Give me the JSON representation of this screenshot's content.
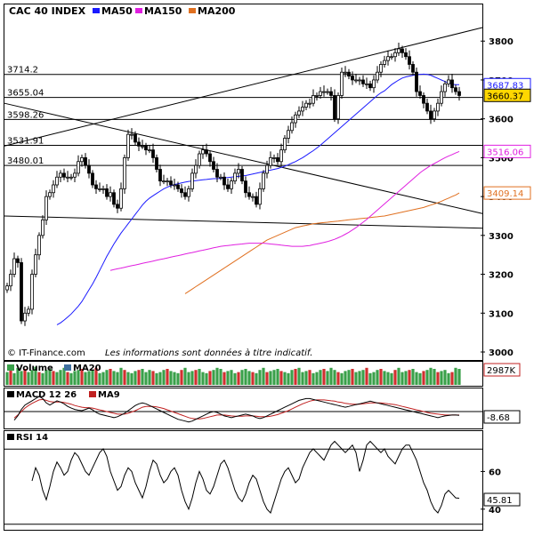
{
  "title": "CAC 40 INDEX",
  "legend_main": [
    {
      "label": "MA50",
      "color": "#1a1aff"
    },
    {
      "label": "MA150",
      "color": "#e020e0"
    },
    {
      "label": "MA200",
      "color": "#e07020"
    }
  ],
  "copyright": "© IT-Finance.com",
  "disclaimer": "Les informations sont données à titre indicatif.",
  "chart_data": [
    {
      "type": "candlestick",
      "title": "CAC 40 INDEX",
      "ylim": [
        3000,
        3860
      ],
      "y_ticks": [
        3000,
        3100,
        3200,
        3300,
        3400,
        3500,
        3600,
        3700,
        3800
      ],
      "n_periods": 128,
      "ohlc_close": [
        3170,
        3200,
        3240,
        3230,
        3080,
        3100,
        3110,
        3200,
        3250,
        3300,
        3340,
        3400,
        3410,
        3430,
        3450,
        3460,
        3450,
        3450,
        3450,
        3460,
        3490,
        3500,
        3480,
        3460,
        3430,
        3420,
        3420,
        3420,
        3400,
        3410,
        3380,
        3370,
        3420,
        3500,
        3560,
        3560,
        3540,
        3530,
        3530,
        3520,
        3520,
        3500,
        3470,
        3440,
        3440,
        3440,
        3430,
        3430,
        3420,
        3410,
        3400,
        3420,
        3460,
        3480,
        3510,
        3520,
        3510,
        3490,
        3470,
        3450,
        3450,
        3430,
        3420,
        3440,
        3460,
        3470,
        3440,
        3410,
        3400,
        3400,
        3380,
        3420,
        3460,
        3480,
        3500,
        3500,
        3490,
        3520,
        3550,
        3570,
        3590,
        3610,
        3620,
        3630,
        3640,
        3640,
        3660,
        3660,
        3670,
        3670,
        3670,
        3660,
        3600,
        3660,
        3720,
        3720,
        3710,
        3700,
        3700,
        3700,
        3690,
        3690,
        3680,
        3700,
        3720,
        3740,
        3750,
        3760,
        3760,
        3770,
        3780,
        3770,
        3760,
        3740,
        3720,
        3670,
        3660,
        3640,
        3620,
        3600,
        3620,
        3640,
        3670,
        3690,
        3700,
        3680,
        3670,
        3660
      ],
      "price_labels": [
        {
          "label": "3714.2",
          "value": 3714.2
        },
        {
          "label": "3655.04",
          "value": 3655.04
        },
        {
          "label": "3598.26",
          "value": 3598.26
        },
        {
          "label": "3531.91",
          "value": 3531.91
        },
        {
          "label": "3480.01",
          "value": 3480.01
        }
      ],
      "last_values": [
        {
          "label": "3687.83",
          "value": 3687.83,
          "color": "#1a1aff"
        },
        {
          "label": "3660.37",
          "value": 3660.37,
          "color": "#000000"
        },
        {
          "label": "3516.06",
          "value": 3516.06,
          "color": "#e020e0"
        },
        {
          "label": "3409.14",
          "value": 3409.14,
          "color": "#e07020"
        }
      ],
      "ma50": [
        3070,
        3075,
        3082,
        3090,
        3098,
        3108,
        3118,
        3130,
        3145,
        3160,
        3175,
        3192,
        3210,
        3228,
        3246,
        3262,
        3278,
        3292,
        3306,
        3318,
        3330,
        3342,
        3354,
        3366,
        3378,
        3388,
        3396,
        3402,
        3408,
        3414,
        3420,
        3424,
        3428,
        3431,
        3433,
        3435,
        3437,
        3439,
        3440,
        3441,
        3442,
        3443,
        3444,
        3445,
        3446,
        3446,
        3447,
        3448,
        3449,
        3450,
        3451,
        3452,
        3453,
        3454,
        3456,
        3458,
        3460,
        3462,
        3464,
        3466,
        3468,
        3470,
        3472,
        3475,
        3478,
        3482,
        3486,
        3490,
        3495,
        3500,
        3506,
        3512,
        3518,
        3525,
        3532,
        3540,
        3548,
        3556,
        3564,
        3572,
        3580,
        3588,
        3596,
        3604,
        3612,
        3620,
        3628,
        3636,
        3644,
        3652,
        3660,
        3667,
        3672,
        3680,
        3688,
        3694,
        3700,
        3705,
        3708,
        3710,
        3712,
        3713,
        3714,
        3715,
        3714,
        3712,
        3708,
        3704,
        3700,
        3696,
        3692,
        3689,
        3688,
        3687.83
      ],
      "ma150": [
        3210,
        3212,
        3214,
        3216,
        3218,
        3220,
        3222,
        3224,
        3226,
        3228,
        3230,
        3232,
        3234,
        3236,
        3238,
        3240,
        3242,
        3244,
        3246,
        3248,
        3250,
        3252,
        3254,
        3256,
        3258,
        3260,
        3262,
        3264,
        3266,
        3268,
        3270,
        3272,
        3273,
        3274,
        3275,
        3276,
        3277,
        3278,
        3279,
        3280,
        3280,
        3280,
        3280,
        3280,
        3279,
        3278,
        3277,
        3276,
        3275,
        3274,
        3273,
        3272,
        3272,
        3272,
        3272,
        3273,
        3274,
        3276,
        3278,
        3280,
        3282,
        3284,
        3287,
        3290,
        3294,
        3298,
        3303,
        3308,
        3314,
        3320,
        3327,
        3334,
        3341,
        3349,
        3357,
        3365,
        3373,
        3381,
        3389,
        3397,
        3405,
        3413,
        3421,
        3429,
        3437,
        3445,
        3453,
        3461,
        3468,
        3474,
        3480,
        3485,
        3490,
        3495,
        3500,
        3504,
        3508,
        3512,
        3516.06
      ],
      "ma200": [
        3150,
        3156,
        3162,
        3168,
        3174,
        3180,
        3186,
        3192,
        3198,
        3204,
        3210,
        3216,
        3222,
        3228,
        3234,
        3240,
        3246,
        3252,
        3258,
        3264,
        3270,
        3276,
        3282,
        3288,
        3292,
        3296,
        3300,
        3304,
        3308,
        3312,
        3316,
        3320,
        3322,
        3324,
        3326,
        3328,
        3330,
        3331,
        3332,
        3333,
        3334,
        3335,
        3336,
        3337,
        3338,
        3339,
        3340,
        3341,
        3342,
        3343,
        3344,
        3345,
        3346,
        3347,
        3348,
        3349,
        3350,
        3352,
        3354,
        3356,
        3358,
        3360,
        3362,
        3364,
        3366,
        3368,
        3370,
        3372,
        3375,
        3378,
        3381,
        3384,
        3388,
        3392,
        3396,
        3400,
        3404,
        3409.14
      ],
      "trendlines": [
        {
          "from": [
            0,
            3530
          ],
          "to": [
            127,
            3820
          ],
          "color": "#000000"
        },
        {
          "from": [
            0,
            3640
          ],
          "to": [
            127,
            3370
          ],
          "color": "#000000"
        },
        {
          "from": [
            0,
            3350
          ],
          "to": [
            127,
            3320
          ],
          "color": "#000000"
        }
      ]
    },
    {
      "type": "bar",
      "title": "Volume",
      "legend": [
        {
          "label": "Volume",
          "color": "#5050c0"
        },
        {
          "label": "MA20",
          "color": "#4070a0"
        }
      ],
      "last_label": "2987K",
      "values": [
        60,
        70,
        55,
        80,
        65,
        75,
        60,
        70,
        85,
        60,
        55,
        70,
        75,
        65,
        60,
        70,
        80,
        60,
        55,
        65,
        70,
        75,
        60,
        65,
        70,
        80,
        55,
        60,
        70,
        75,
        65,
        60,
        80,
        70,
        60,
        55,
        65,
        70,
        75,
        60,
        70,
        65,
        55,
        60,
        70,
        75,
        65,
        60,
        55,
        70,
        80,
        60,
        65,
        70,
        75,
        60,
        55,
        65,
        70,
        80,
        75,
        60,
        65,
        70,
        55,
        60,
        70,
        75,
        65,
        60,
        55,
        70,
        80,
        60,
        65,
        70,
        75,
        65,
        60,
        55,
        70,
        75,
        80,
        60,
        65,
        70,
        55,
        60,
        70,
        75,
        65,
        80,
        70,
        60,
        55,
        65,
        70,
        75,
        60,
        65,
        70,
        80,
        55,
        60,
        70,
        75,
        65,
        60,
        55,
        70,
        80,
        60,
        65,
        70,
        75,
        60,
        55,
        65,
        70,
        80,
        75,
        60,
        65,
        70,
        55,
        60,
        80,
        75
      ]
    },
    {
      "type": "line",
      "title": "MACD 12 26",
      "legend": [
        {
          "label": "MACD 12 26",
          "color": "#000000"
        },
        {
          "label": "MA9",
          "color": "#c02020"
        }
      ],
      "last_label": "-8.68",
      "macd": [
        -20,
        -10,
        5,
        15,
        20,
        25,
        30,
        35,
        30,
        20,
        15,
        20,
        25,
        22,
        18,
        12,
        8,
        5,
        3,
        2,
        5,
        8,
        4,
        -2,
        -6,
        -8,
        -10,
        -12,
        -14,
        -12,
        -8,
        -4,
        2,
        8,
        14,
        18,
        20,
        18,
        14,
        10,
        6,
        2,
        -2,
        -6,
        -10,
        -14,
        -18,
        -20,
        -22,
        -24,
        -22,
        -18,
        -14,
        -10,
        -6,
        -2,
        0,
        -2,
        -6,
        -10,
        -12,
        -14,
        -12,
        -10,
        -8,
        -6,
        -8,
        -10,
        -14,
        -16,
        -14,
        -10,
        -6,
        -2,
        2,
        6,
        10,
        14,
        18,
        22,
        26,
        28,
        30,
        30,
        28,
        26,
        24,
        22,
        20,
        18,
        16,
        14,
        12,
        10,
        12,
        14,
        16,
        18,
        20,
        22,
        24,
        22,
        20,
        18,
        16,
        14,
        12,
        10,
        8,
        6,
        4,
        2,
        0,
        -2,
        -4,
        -6,
        -8,
        -10,
        -12,
        -14,
        -12,
        -10,
        -9,
        -8,
        -8,
        -8.68
      ],
      "signal": [
        -15,
        -8,
        0,
        8,
        14,
        19,
        23,
        27,
        28,
        26,
        23,
        22,
        22,
        22,
        21,
        19,
        17,
        14,
        12,
        10,
        9,
        9,
        8,
        6,
        4,
        2,
        0,
        -2,
        -4,
        -6,
        -6,
        -6,
        -4,
        -1,
        2,
        6,
        10,
        12,
        12,
        12,
        11,
        9,
        7,
        4,
        1,
        -2,
        -5,
        -8,
        -11,
        -14,
        -16,
        -17,
        -17,
        -16,
        -14,
        -12,
        -10,
        -8,
        -8,
        -8,
        -9,
        -10,
        -11,
        -11,
        -11,
        -10,
        -10,
        -10,
        -11,
        -12,
        -12,
        -12,
        -11,
        -9,
        -7,
        -4,
        -1,
        2,
        6,
        10,
        14,
        18,
        21,
        24,
        26,
        27,
        27,
        27,
        26,
        25,
        24,
        22,
        21,
        19,
        18,
        17,
        17,
        17,
        18,
        19,
        20,
        20,
        20,
        20,
        19,
        18,
        17,
        16,
        14,
        12,
        10,
        8,
        6,
        4,
        2,
        0,
        -2,
        -4,
        -5,
        -6,
        -7,
        -8,
        -8,
        -8,
        -8,
        -8
      ]
    },
    {
      "type": "line",
      "title": "RSI 14",
      "ylim": [
        30,
        80
      ],
      "y_ticks": [
        40,
        60
      ],
      "last_label": "45.81",
      "values": [
        55,
        62,
        58,
        50,
        45,
        52,
        60,
        65,
        62,
        58,
        60,
        66,
        70,
        68,
        64,
        60,
        58,
        62,
        66,
        70,
        72,
        68,
        60,
        55,
        50,
        52,
        58,
        62,
        60,
        54,
        50,
        46,
        52,
        60,
        66,
        64,
        58,
        54,
        56,
        60,
        62,
        58,
        50,
        44,
        40,
        46,
        54,
        60,
        56,
        50,
        48,
        52,
        58,
        64,
        66,
        62,
        56,
        50,
        46,
        44,
        48,
        54,
        58,
        56,
        50,
        44,
        40,
        38,
        44,
        50,
        56,
        60,
        62,
        58,
        54,
        56,
        62,
        66,
        70,
        72,
        70,
        68,
        66,
        70,
        74,
        76,
        74,
        72,
        70,
        72,
        74,
        70,
        60,
        66,
        74,
        76,
        74,
        72,
        70,
        72,
        68,
        66,
        64,
        68,
        72,
        74,
        74,
        70,
        66,
        60,
        54,
        50,
        44,
        40,
        38,
        42,
        48,
        50,
        48,
        46,
        45.81
      ]
    }
  ]
}
